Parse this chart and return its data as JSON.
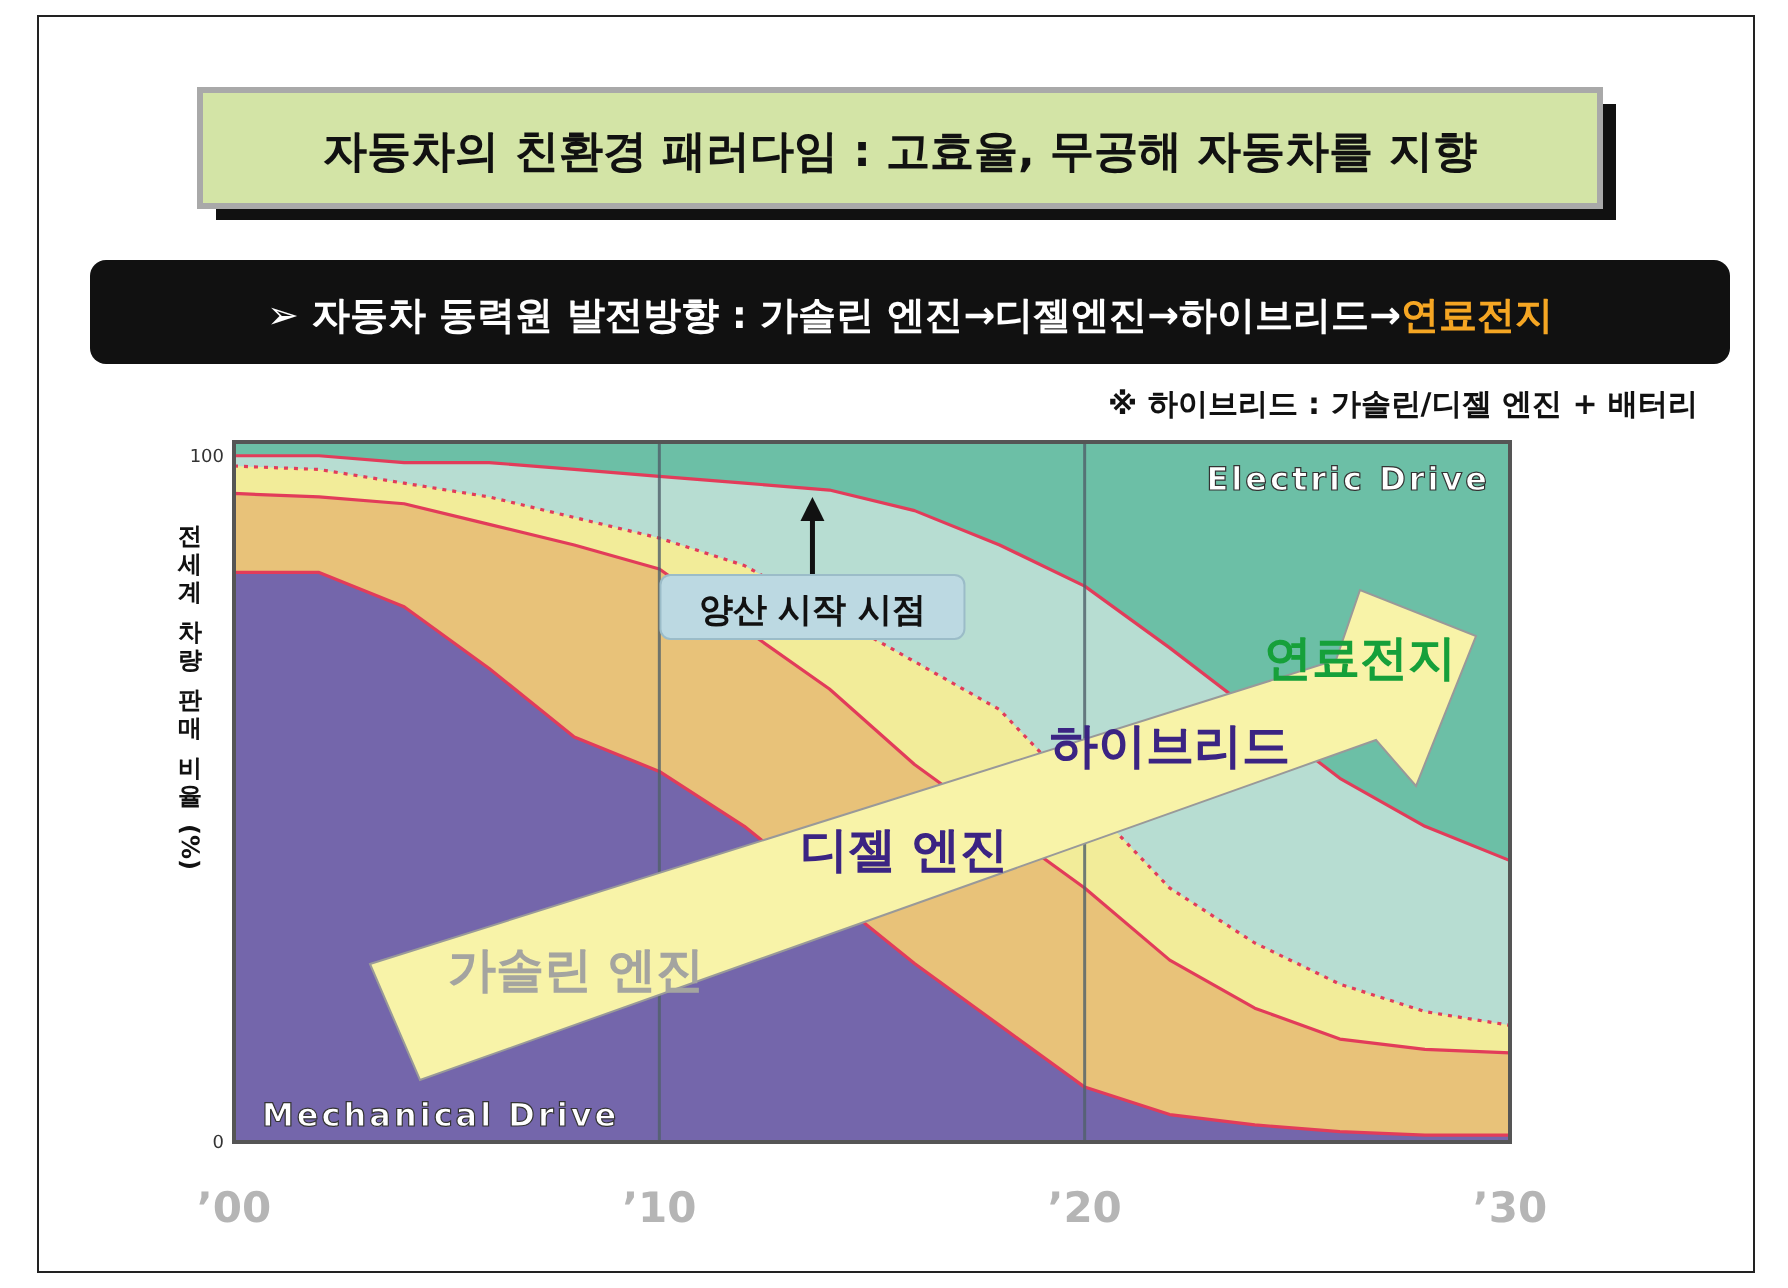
{
  "chart_data": {
    "type": "area",
    "title": "자동차의 친환경 패러다임 : 고효율, 무공해 자동차를 지향",
    "subtitle": "➢ 자동차 동력원 발전방향 : 가솔린 엔진→디젤엔진→하이브리드→연료전지",
    "ylabel": "전세계 차량 판매 비율 (%)",
    "x": [
      2000,
      2002,
      2004,
      2006,
      2008,
      2010,
      2012,
      2014,
      2016,
      2018,
      2020,
      2022,
      2024,
      2026,
      2028,
      2030
    ],
    "series": [
      {
        "name": "Mechanical Drive",
        "color": "#7466ab",
        "line_style": "solid",
        "values": [
          83,
          83,
          78,
          69,
          59,
          54,
          46,
          null,
          26,
          17,
          8,
          4,
          2.5,
          1.5,
          1,
          1
        ]
      },
      {
        "color": "#e8c279",
        "line_style": "solid",
        "values": [
          94.5,
          94,
          93,
          90,
          87,
          83.5,
          null,
          66,
          55,
          null,
          37,
          26.5,
          19.5,
          15,
          13.5,
          13
        ]
      },
      {
        "color": "#f2ec99",
        "line_style": "dotted",
        "values": [
          98.5,
          98,
          96,
          94,
          91,
          88,
          84,
          null,
          null,
          63,
          null,
          37,
          29,
          23,
          19,
          17
        ]
      },
      {
        "color": "#b7ddd2",
        "line_style": "solid",
        "values": [
          100,
          100,
          99,
          99,
          98,
          97,
          96,
          95,
          92,
          87,
          81,
          72,
          null,
          53,
          46,
          41
        ]
      }
    ],
    "bands": [
      {
        "axis": "y",
        "from": 41,
        "to": 102,
        "label": "Electric Drive",
        "color": "#6cbfa6"
      }
    ],
    "xlim": [
      2000,
      2030
    ],
    "xticks": [
      {
        "value": 2000,
        "label": "’00"
      },
      {
        "value": 2010,
        "label": "’10"
      },
      {
        "value": 2020,
        "label": "’20"
      },
      {
        "value": 2030,
        "label": "’30"
      }
    ],
    "ylim": [
      0,
      102
    ],
    "yticks": [
      0,
      100
    ],
    "grid": "x",
    "annotations": [
      "※ 하이브리드 : 가솔린/디젤 엔진 + 배터리",
      {
        "text": "양산 시작 시점",
        "x": 2013.6,
        "y": 94
      },
      "가솔린 엔진",
      "디젤 엔진",
      "하이브리드",
      "연료전지"
    ]
  }
}
